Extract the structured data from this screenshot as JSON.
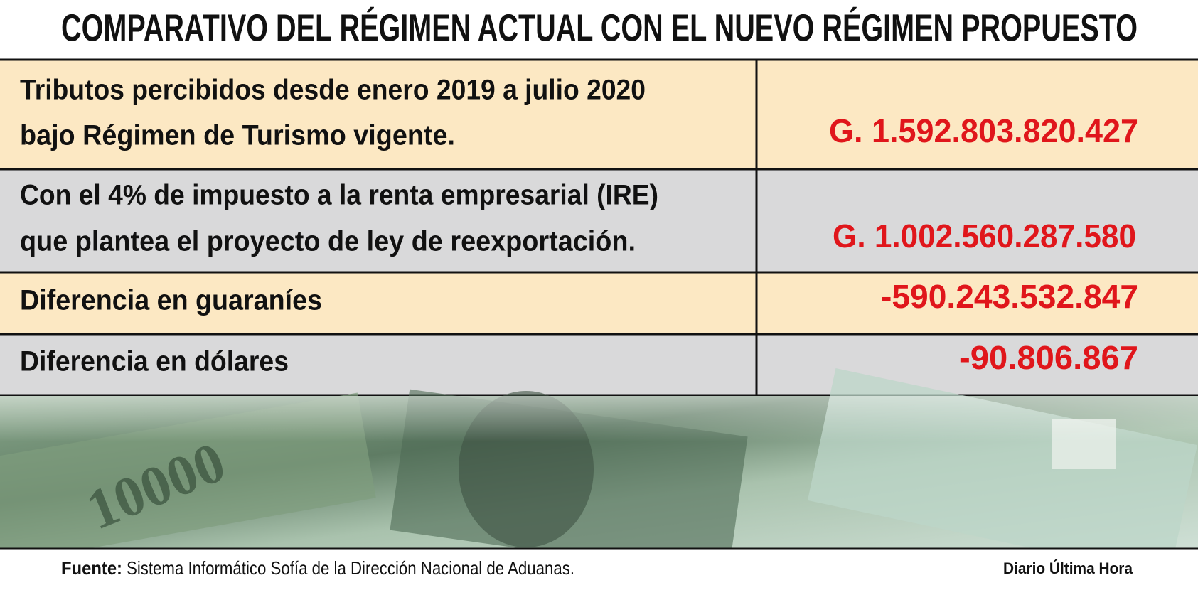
{
  "title": "COMPARATIVO DEL RÉGIMEN ACTUAL CON EL NUEVO RÉGIMEN PROPUESTO",
  "table": {
    "rows": [
      {
        "label": [
          "Tributos percibidos desde enero 2019 a julio 2020",
          "bajo Régimen de Turismo vigente."
        ],
        "value": "G. 1.592.803.820.427"
      },
      {
        "label": [
          "Con el 4% de impuesto a la renta empresarial (IRE)",
          "que plantea el proyecto de ley de reexportación."
        ],
        "value": "G. 1.002.560.287.580"
      },
      {
        "label": [
          "Diferencia en guaraníes"
        ],
        "value": "-590.243.532.847"
      },
      {
        "label": [
          "Diferencia en dólares"
        ],
        "value": "-90.806.867"
      }
    ]
  },
  "footer": {
    "source_label": "Fuente:",
    "source": "Sistema Informático Sofía de la Dirección Nacional de Aduanas.",
    "credit": "Diario Última Hora"
  }
}
